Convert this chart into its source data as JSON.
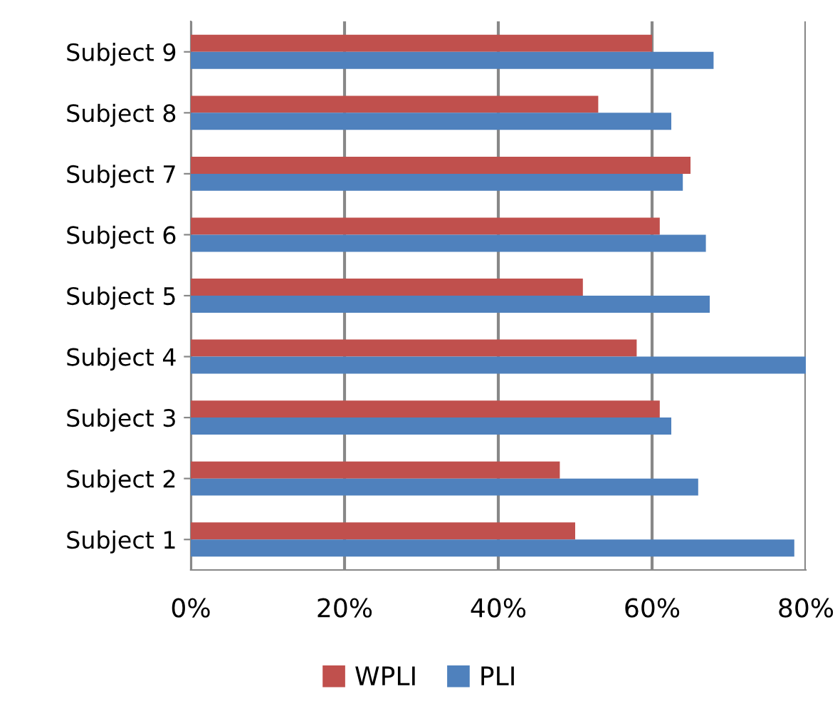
{
  "chart_data": {
    "type": "bar",
    "orientation": "horizontal",
    "categories": [
      "Subject 9",
      "Subject 8",
      "Subject 7",
      "Subject 6",
      "Subject 5",
      "Subject 4",
      "Subject 3",
      "Subject 2",
      "Subject 1"
    ],
    "series": [
      {
        "name": "WPLI",
        "color": "#c0504d",
        "values": [
          60,
          53,
          65,
          61,
          51,
          58,
          61,
          48,
          50
        ]
      },
      {
        "name": "PLI",
        "color": "#4f81bd",
        "values": [
          68,
          62.5,
          64,
          67,
          67.5,
          80,
          62.5,
          66,
          78.5
        ]
      }
    ],
    "xlim": [
      0,
      80
    ],
    "xticks": [
      {
        "value": 0,
        "label": "0%"
      },
      {
        "value": 20,
        "label": "20%"
      },
      {
        "value": 40,
        "label": "40%"
      },
      {
        "value": 60,
        "label": "60%"
      },
      {
        "value": 80,
        "label": "80%"
      }
    ],
    "grid": "x",
    "legend": "bottom"
  }
}
